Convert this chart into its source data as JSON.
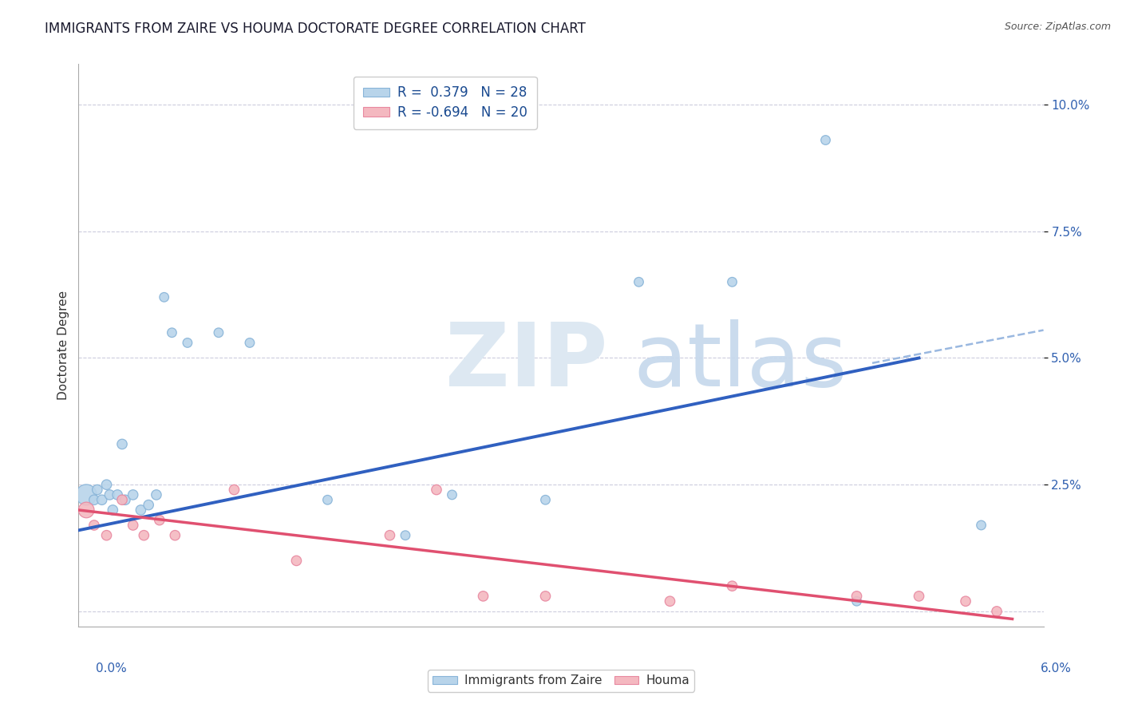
{
  "title": "IMMIGRANTS FROM ZAIRE VS HOUMA DOCTORATE DEGREE CORRELATION CHART",
  "source": "Source: ZipAtlas.com",
  "ylabel": "Doctorate Degree",
  "xlim": [
    0.0,
    6.2
  ],
  "ylim": [
    -0.3,
    10.8
  ],
  "yticks": [
    0.0,
    2.5,
    5.0,
    7.5,
    10.0
  ],
  "ytick_labels": [
    "",
    "2.5%",
    "5.0%",
    "7.5%",
    "10.0%"
  ],
  "legend_entries": [
    {
      "label": "R =  0.379   N = 28"
    },
    {
      "label": "R = -0.694   N = 20"
    }
  ],
  "bottom_legend": [
    "Immigrants from Zaire",
    "Houma"
  ],
  "blue_fill": "#b8d4ea",
  "blue_edge": "#88b4d8",
  "pink_fill": "#f4b8c0",
  "pink_edge": "#e888a0",
  "blue_line_color": "#3060c0",
  "blue_dash_color": "#9ab8e0",
  "pink_line_color": "#e05070",
  "background_color": "#ffffff",
  "grid_color": "#ccccdd",
  "blue_scatter_x": [
    0.05,
    0.1,
    0.12,
    0.15,
    0.18,
    0.2,
    0.22,
    0.25,
    0.28,
    0.3,
    0.35,
    0.4,
    0.45,
    0.5,
    0.55,
    0.6,
    0.7,
    0.9,
    1.1,
    1.6,
    2.1,
    2.4,
    3.0,
    3.6,
    4.2,
    4.8,
    5.0,
    5.8
  ],
  "blue_scatter_y": [
    2.3,
    2.2,
    2.4,
    2.2,
    2.5,
    2.3,
    2.0,
    2.3,
    3.3,
    2.2,
    2.3,
    2.0,
    2.1,
    2.3,
    6.2,
    5.5,
    5.3,
    5.5,
    5.3,
    2.2,
    1.5,
    2.3,
    2.2,
    6.5,
    6.5,
    9.3,
    0.2,
    1.7
  ],
  "blue_scatter_sizes": [
    350,
    80,
    80,
    80,
    80,
    80,
    80,
    80,
    80,
    80,
    80,
    80,
    80,
    80,
    70,
    70,
    70,
    70,
    70,
    70,
    70,
    70,
    70,
    70,
    70,
    70,
    70,
    70
  ],
  "pink_scatter_x": [
    0.05,
    0.1,
    0.18,
    0.28,
    0.35,
    0.42,
    0.52,
    0.62,
    1.0,
    1.4,
    2.0,
    2.3,
    2.6,
    3.0,
    3.8,
    4.2,
    5.0,
    5.4,
    5.7,
    5.9
  ],
  "pink_scatter_y": [
    2.0,
    1.7,
    1.5,
    2.2,
    1.7,
    1.5,
    1.8,
    1.5,
    2.4,
    1.0,
    1.5,
    2.4,
    0.3,
    0.3,
    0.2,
    0.5,
    0.3,
    0.3,
    0.2,
    0.0
  ],
  "pink_scatter_sizes": [
    200,
    80,
    80,
    80,
    80,
    80,
    80,
    80,
    80,
    80,
    80,
    80,
    80,
    80,
    80,
    80,
    80,
    80,
    80,
    80
  ],
  "blue_line_x0": 0.0,
  "blue_line_x1": 5.4,
  "blue_line_y0": 1.6,
  "blue_line_y1": 5.0,
  "blue_dash_x0": 5.1,
  "blue_dash_x1": 6.2,
  "blue_dash_y0": 4.9,
  "blue_dash_y1": 5.55,
  "pink_line_x0": 0.0,
  "pink_line_x1": 6.0,
  "pink_line_y0": 2.0,
  "pink_line_y1": -0.15,
  "title_fontsize": 12,
  "tick_fontsize": 11
}
